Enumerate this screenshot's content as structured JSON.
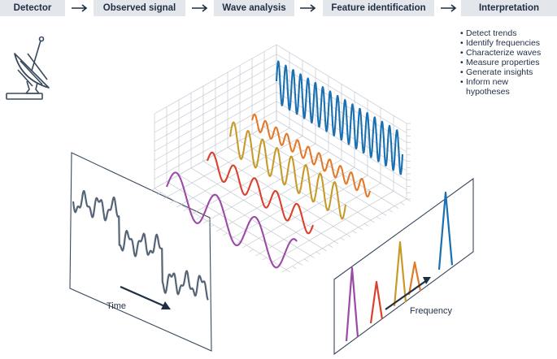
{
  "pipeline": {
    "steps": [
      {
        "label": "Detector"
      },
      {
        "label": "Observed signal"
      },
      {
        "label": "Wave analysis"
      },
      {
        "label": "Feature identification"
      },
      {
        "label": "Interpretation"
      }
    ]
  },
  "interpretation": {
    "items": [
      "Detect trends",
      "Identify frequencies",
      "Characterize waves",
      "Measure properties",
      "Generate insights",
      "Inform new",
      "hypotheses"
    ]
  },
  "axes": {
    "time_label": "Time",
    "frequency_label": "Frequency"
  },
  "icons": {
    "detector": "satellite-dish-icon",
    "step_arrow": "arrow-right-icon"
  },
  "colors": {
    "step_bg": "#e3e6ea",
    "text": "#1f2f43",
    "signal": "#556577",
    "purple": "#9b4aa6",
    "red": "#d9412d",
    "gold": "#c79a2a",
    "orange": "#e37a2a",
    "blue": "#1a70b0"
  }
}
